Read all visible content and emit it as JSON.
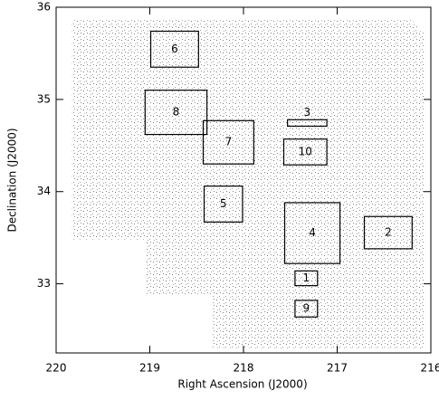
{
  "chart_data": {
    "type": "regions",
    "xlabel": "Right Ascension (J2000)",
    "ylabel": "Declination (J2000)",
    "xlim": [
      220,
      216
    ],
    "ylim": [
      32.25,
      36
    ],
    "xticks": [
      220,
      219,
      218,
      217,
      216
    ],
    "yticks": [
      33,
      34,
      35,
      36
    ],
    "footprint": {
      "ra": [
        219.83,
        216.2,
        216.06,
        216.06,
        218.33,
        218.33,
        219.05,
        219.05,
        219.83
      ],
      "dec": [
        35.86,
        35.86,
        35.7,
        32.3,
        32.3,
        32.89,
        32.89,
        33.48,
        33.48
      ]
    },
    "regions": [
      {
        "label": "6",
        "ra": [
          218.99,
          218.48
        ],
        "dec": [
          35.35,
          35.74
        ]
      },
      {
        "label": "8",
        "ra": [
          219.05,
          218.39
        ],
        "dec": [
          34.62,
          35.1
        ]
      },
      {
        "label": "7",
        "ra": [
          218.43,
          217.89
        ],
        "dec": [
          34.3,
          34.77
        ]
      },
      {
        "label": "5",
        "ra": [
          218.42,
          218.01
        ],
        "dec": [
          33.67,
          34.06
        ]
      },
      {
        "label": "3",
        "ra": [
          217.53,
          217.11
        ],
        "dec": [
          34.71,
          34.78
        ]
      },
      {
        "label": "10",
        "ra": [
          217.57,
          217.11
        ],
        "dec": [
          34.29,
          34.57
        ]
      },
      {
        "label": "4",
        "ra": [
          217.56,
          216.97
        ],
        "dec": [
          33.22,
          33.88
        ]
      },
      {
        "label": "2",
        "ra": [
          216.71,
          216.2
        ],
        "dec": [
          33.38,
          33.73
        ]
      },
      {
        "label": "1",
        "ra": [
          217.45,
          217.21
        ],
        "dec": [
          32.98,
          33.14
        ]
      },
      {
        "label": "9",
        "ra": [
          217.45,
          217.21
        ],
        "dec": [
          32.64,
          32.82
        ]
      }
    ]
  }
}
